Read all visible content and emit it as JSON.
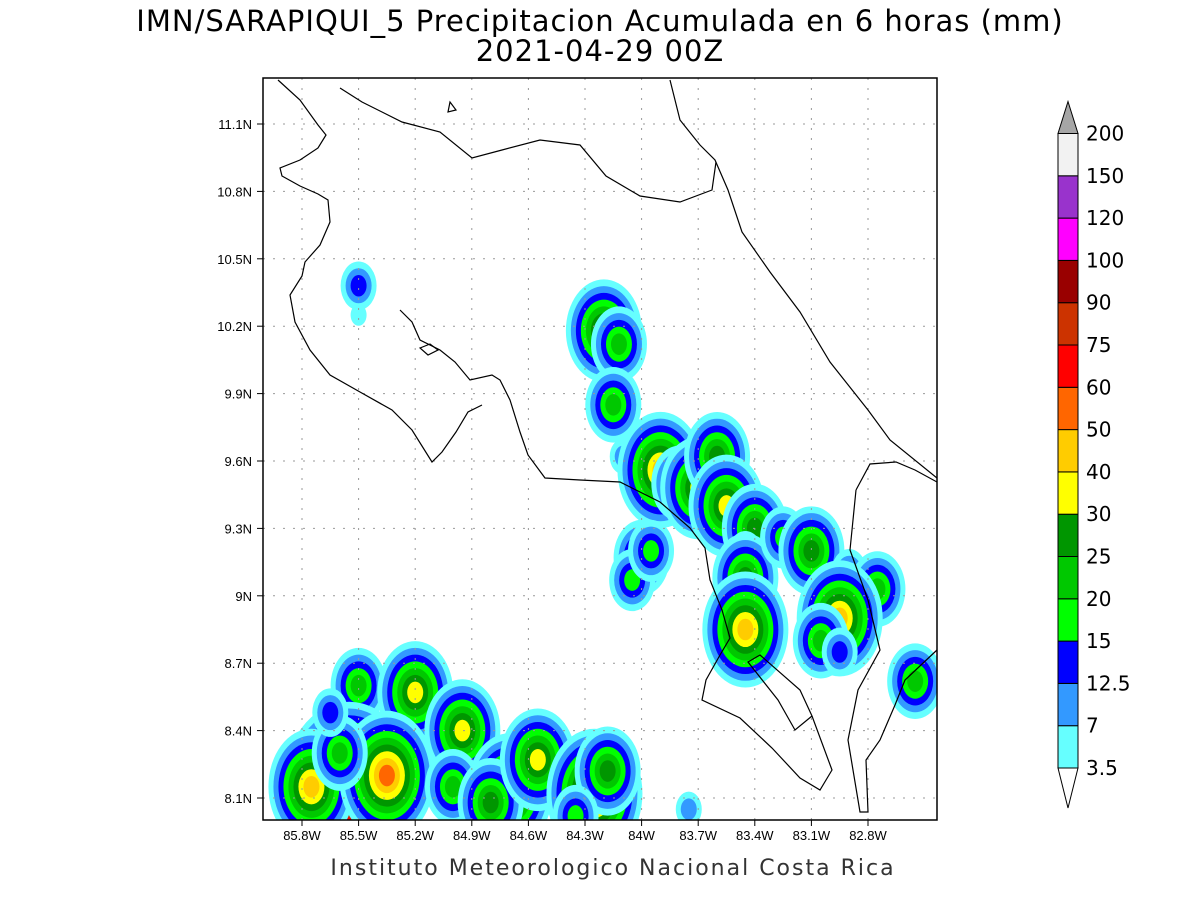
{
  "title": "IMN/SARAPIQUI_5 Precipitacion Acumulada en 6 horas (mm)",
  "subtitle": "2021-04-29 00Z",
  "credit": "Instituto Meteorologico Nacional Costa Rica",
  "lon_ticks": [
    "85.8W",
    "85.5W",
    "85.2W",
    "84.9W",
    "84.6W",
    "84.3W",
    "84W",
    "83.7W",
    "83.4W",
    "83.1W",
    "82.8W"
  ],
  "lat_ticks": [
    "11.1N",
    "10.8N",
    "10.5N",
    "10.2N",
    "9.9N",
    "9.6N",
    "9.3N",
    "9N",
    "8.7N",
    "8.4N",
    "8.1N"
  ],
  "colorbar": {
    "labels": [
      "3.5",
      "7",
      "12.5",
      "15",
      "20",
      "25",
      "30",
      "40",
      "50",
      "60",
      "75",
      "90",
      "100",
      "120",
      "150",
      "200"
    ],
    "colors": [
      "#66ffff",
      "#3399ff",
      "#0000ff",
      "#00ff00",
      "#00c800",
      "#009600",
      "#ffff00",
      "#ffcc00",
      "#ff6600",
      "#ff0000",
      "#cc3300",
      "#990000",
      "#ff00ff",
      "#9933cc",
      "#f2f2f2"
    ],
    "over_color": "#a6a6a6"
  },
  "cells": [
    [
      -85.5,
      10.38,
      3
    ],
    [
      -85.5,
      10.25,
      1
    ],
    [
      -84.2,
      10.18,
      7
    ],
    [
      -84.12,
      10.12,
      5
    ],
    [
      -84.15,
      9.85,
      5
    ],
    [
      -84.1,
      9.62,
      2
    ],
    [
      -83.9,
      9.56,
      8
    ],
    [
      -83.8,
      9.5,
      5
    ],
    [
      -83.7,
      9.48,
      7
    ],
    [
      -83.6,
      9.62,
      6
    ],
    [
      -83.55,
      9.4,
      7
    ],
    [
      -83.4,
      9.3,
      6
    ],
    [
      -83.45,
      9.18,
      3
    ],
    [
      -83.45,
      9.08,
      6
    ],
    [
      -83.25,
      9.26,
      4
    ],
    [
      -83.1,
      9.2,
      6
    ],
    [
      -82.9,
      9.1,
      3
    ],
    [
      -82.75,
      9.03,
      5
    ],
    [
      -82.95,
      8.9,
      8
    ],
    [
      -83.05,
      8.8,
      5
    ],
    [
      -83.45,
      8.85,
      8
    ],
    [
      -84.0,
      9.17,
      5
    ],
    [
      -84.05,
      9.07,
      4
    ],
    [
      -83.95,
      9.2,
      4
    ],
    [
      -82.55,
      8.62,
      5
    ],
    [
      -82.95,
      8.75,
      3
    ],
    [
      -85.5,
      8.6,
      5
    ],
    [
      -85.2,
      8.57,
      7
    ],
    [
      -84.95,
      8.4,
      7
    ],
    [
      -85.55,
      8.12,
      13
    ],
    [
      -85.75,
      8.15,
      8
    ],
    [
      -85.35,
      8.2,
      9
    ],
    [
      -85.6,
      8.3,
      5
    ],
    [
      -85.0,
      8.15,
      5
    ],
    [
      -84.7,
      8.13,
      8
    ],
    [
      -84.8,
      8.08,
      6
    ],
    [
      -84.55,
      8.27,
      7
    ],
    [
      -84.25,
      8.12,
      9
    ],
    [
      -84.18,
      8.22,
      6
    ],
    [
      -85.65,
      8.48,
      3
    ],
    [
      -84.35,
      8.02,
      4
    ],
    [
      -83.75,
      8.05,
      2
    ]
  ]
}
